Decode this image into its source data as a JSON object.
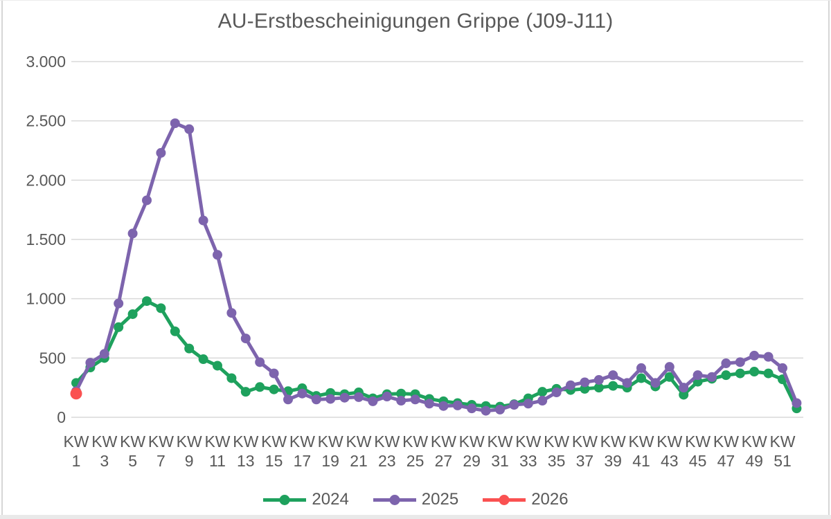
{
  "window": {
    "background": "#ffffff",
    "border_color": "#d6d6d6",
    "bottom_strip_color": "#e9e9e9"
  },
  "chart_data": {
    "type": "line",
    "title": "AU-Erstbescheinigungen Grippe (J09-J11)",
    "grid": true,
    "legend_position": "bottom",
    "colors": {
      "text": "#595959",
      "grid": "#D9D9D9",
      "series_2024": "#1EA15D",
      "series_2025": "#7D64AD",
      "series_2026": "#FA5151"
    },
    "x_axis": {
      "tick_prefix": "KW",
      "tick_weeks": [
        1,
        3,
        5,
        7,
        9,
        11,
        13,
        15,
        17,
        19,
        21,
        23,
        25,
        27,
        29,
        31,
        33,
        35,
        37,
        39,
        41,
        43,
        45,
        47,
        49,
        51
      ],
      "weeks_total": 52
    },
    "y_axis": {
      "min": 0,
      "max": 3000,
      "ticks": [
        {
          "value": 0,
          "label": "0"
        },
        {
          "value": 500,
          "label": "500"
        },
        {
          "value": 1000,
          "label": "1.000"
        },
        {
          "value": 1500,
          "label": "1.500"
        },
        {
          "value": 2000,
          "label": "2.000"
        },
        {
          "value": 2500,
          "label": "2.500"
        },
        {
          "value": 3000,
          "label": "3.000"
        }
      ]
    },
    "series": [
      {
        "name": "2024",
        "color": "#1EA15D",
        "start_week": 1,
        "values": [
          290,
          420,
          500,
          760,
          870,
          980,
          920,
          725,
          580,
          490,
          435,
          330,
          215,
          255,
          235,
          220,
          245,
          180,
          205,
          195,
          210,
          160,
          195,
          200,
          195,
          155,
          135,
          120,
          105,
          95,
          90,
          110,
          160,
          215,
          240,
          230,
          240,
          250,
          265,
          250,
          330,
          260,
          340,
          190,
          300,
          325,
          355,
          370,
          385,
          370,
          320,
          75
        ]
      },
      {
        "name": "2025",
        "color": "#7D64AD",
        "start_week": 1,
        "values": [
          220,
          460,
          535,
          960,
          1550,
          1830,
          2230,
          2480,
          2430,
          1660,
          1370,
          880,
          665,
          465,
          370,
          150,
          200,
          150,
          155,
          165,
          170,
          135,
          175,
          140,
          150,
          115,
          95,
          100,
          75,
          55,
          65,
          105,
          115,
          140,
          210,
          270,
          295,
          315,
          355,
          290,
          415,
          290,
          425,
          250,
          355,
          340,
          455,
          465,
          520,
          510,
          415,
          120
        ]
      },
      {
        "name": "2026",
        "color": "#FA5151",
        "start_week": 1,
        "values": [
          200
        ]
      }
    ]
  }
}
